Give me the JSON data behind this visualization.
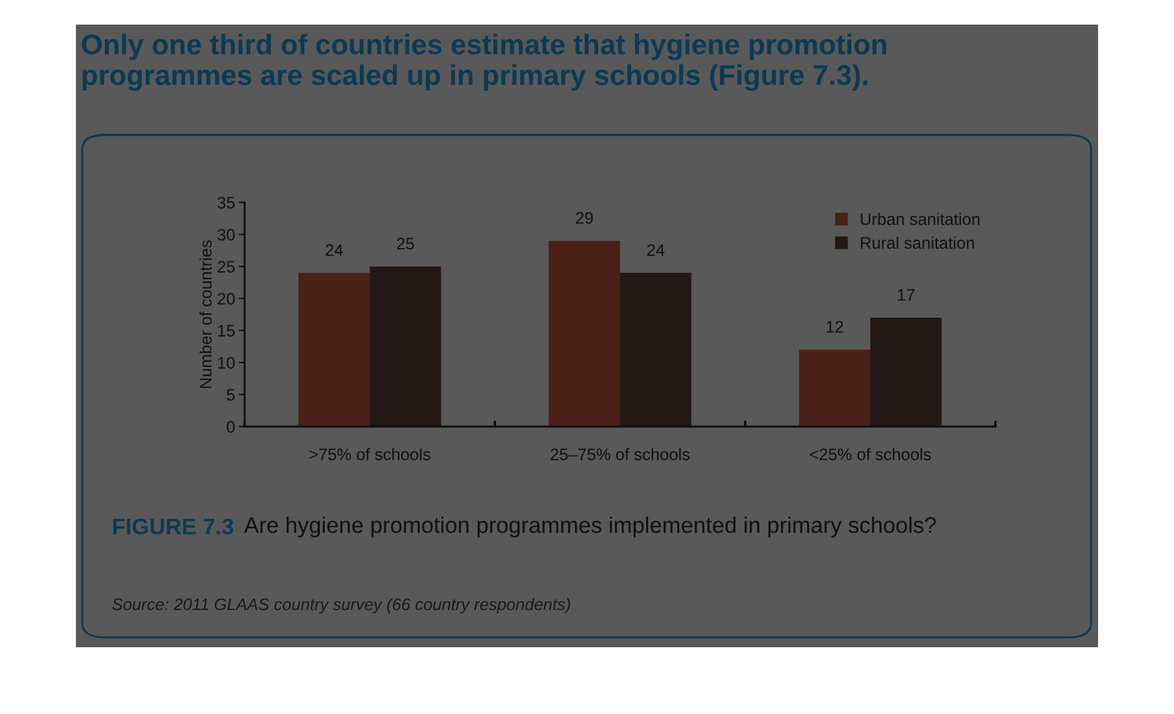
{
  "chart_data": {
    "type": "bar",
    "title": "Only one third of countries estimate that hygiene promotion programmes are scaled up in primary schools (Figure 7.3).",
    "ylabel": "Number of countries",
    "categories": [
      ">75% of schools",
      "25–75% of schools",
      "<25% of schools"
    ],
    "series": [
      {
        "name": "Urban sanitation",
        "color": "#4a2018",
        "values": [
          24,
          29,
          12
        ]
      },
      {
        "name": "Rural sanitation",
        "color": "#221816",
        "values": [
          25,
          24,
          17
        ]
      }
    ],
    "ylim": [
      0,
      35
    ],
    "yticks": [
      0,
      5,
      10,
      15,
      20,
      25,
      30,
      35
    ],
    "data_labels": true,
    "grid": false,
    "legend": "top right",
    "annotations": [
      "FIGURE 7.3",
      "Are hygiene promotion programmes implemented in primary schools?",
      "Source: 2011 GLAAS country survey (66 country respondents)"
    ]
  }
}
